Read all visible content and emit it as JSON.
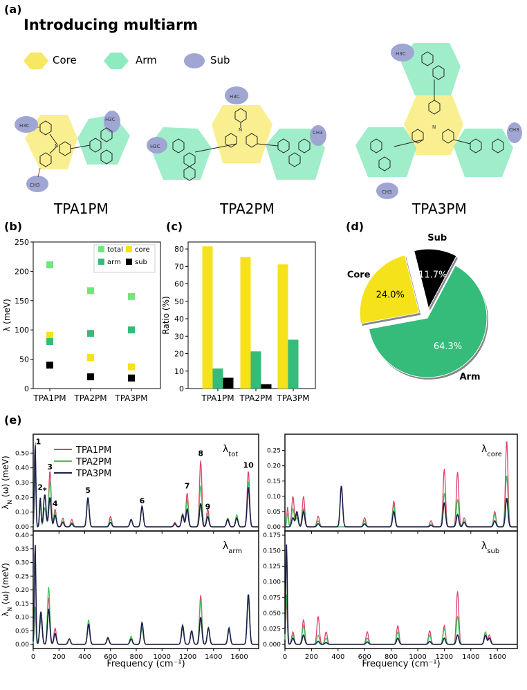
{
  "panel_labels": {
    "a": "(a)",
    "b": "(b)",
    "c": "(c)",
    "d": "(d)",
    "e": "(e)"
  },
  "section_a": {
    "title": "Introducing multiarm",
    "legend": [
      {
        "name": "Core",
        "color": "#f7e863"
      },
      {
        "name": "Arm",
        "color": "#8eeabf"
      },
      {
        "name": "Sub",
        "color": "#9fa6d3"
      }
    ],
    "molecules": [
      "TPA1PM",
      "TPA2PM",
      "TPA3PM"
    ],
    "chem_labels": {
      "h3c_o": "H3C",
      "o": "O",
      "n": "N",
      "ch3": "CH3"
    }
  },
  "chart_data": [
    {
      "id": "b",
      "type": "scatter",
      "xlabel": "",
      "ylabel": "λ (meV)",
      "categories": [
        "TPA1PM",
        "TPA2PM",
        "TPA3PM"
      ],
      "ylim": [
        0,
        250
      ],
      "yticks": [
        0,
        50,
        100,
        150,
        200,
        250
      ],
      "series": [
        {
          "name": "total",
          "color": "#6ee87b",
          "values": [
            211,
            167,
            157
          ]
        },
        {
          "name": "core",
          "color": "#f6e21a",
          "values": [
            91,
            53,
            37
          ]
        },
        {
          "name": "arm",
          "color": "#35bb7a",
          "values": [
            80,
            94,
            100
          ]
        },
        {
          "name": "sub",
          "color": "#000000",
          "values": [
            40,
            20,
            18
          ]
        }
      ]
    },
    {
      "id": "c",
      "type": "bar",
      "xlabel": "",
      "ylabel": "Ratio (%)",
      "categories": [
        "TPA1PM",
        "TPA2PM",
        "TPA3PM"
      ],
      "ylim": [
        0,
        84
      ],
      "yticks": [
        0,
        10,
        20,
        30,
        40,
        50,
        60,
        70,
        80
      ],
      "series": [
        {
          "name": "core",
          "color": "#f6e21a",
          "values": [
            81.5,
            75.3,
            71.2
          ]
        },
        {
          "name": "arm",
          "color": "#35bb7a",
          "values": [
            11.5,
            21.3,
            28.0
          ]
        },
        {
          "name": "sub",
          "color": "#000000",
          "values": [
            6.2,
            2.5,
            0.2
          ]
        }
      ]
    },
    {
      "id": "d",
      "type": "pie",
      "slices": [
        {
          "name": "Arm",
          "value": 64.3,
          "label": "64.3%",
          "color": "#35bb7a",
          "text_color": "#ffffff"
        },
        {
          "name": "Core",
          "value": 24.0,
          "label": "24.0%",
          "color": "#f6e21a",
          "text_color": "#000000"
        },
        {
          "name": "Sub",
          "value": 11.7,
          "label": "11.7%",
          "color": "#000000",
          "text_color": "#ffffff"
        }
      ]
    },
    {
      "id": "e",
      "type": "line",
      "xlabel": "Frequency (cm⁻¹)",
      "ylabel": "λN (ω) (meV)",
      "ylabel_parts": {
        "main": "λ",
        "sub": "N",
        "rest": " (ω) (meV)"
      },
      "xlim": [
        0,
        1750
      ],
      "xticks": [
        0,
        200,
        400,
        600,
        800,
        1000,
        1200,
        1400,
        1600
      ],
      "series_names": [
        "TPA1PM",
        "TPA2PM",
        "TPA3PM"
      ],
      "series_colors": [
        "#e0406a",
        "#3ec45b",
        "#1a1f4a"
      ],
      "peak_labels": [
        {
          "label": "1",
          "x": 40,
          "y": 0.56
        },
        {
          "label": "2",
          "x": 55,
          "y": 0.25
        },
        {
          "label": "*",
          "x": 90,
          "y": 0.23
        },
        {
          "label": "3",
          "x": 130,
          "y": 0.39
        },
        {
          "label": "4",
          "x": 170,
          "y": 0.14
        },
        {
          "label": "5",
          "x": 425,
          "y": 0.23
        },
        {
          "label": "6",
          "x": 845,
          "y": 0.16
        },
        {
          "label": "7",
          "x": 1195,
          "y": 0.26
        },
        {
          "label": "8",
          "x": 1300,
          "y": 0.48
        },
        {
          "label": "9",
          "x": 1355,
          "y": 0.12
        },
        {
          "label": "10",
          "x": 1670,
          "y": 0.4
        }
      ],
      "subplots": [
        {
          "name": "tot",
          "title_main": "λ",
          "title_sub": "tot",
          "ylim": [
            0,
            0.6
          ],
          "yticks": [
            0,
            0.1,
            0.2,
            0.3,
            0.4,
            0.5
          ],
          "peaks": [
            [
              15,
              0.58,
              0.37,
              0.56
            ],
            [
              55,
              0.19,
              0.15,
              0.2
            ],
            [
              90,
              0.13,
              0.13,
              0.22
            ],
            [
              130,
              0.38,
              0.31,
              0.2
            ],
            [
              170,
              0.12,
              0.1,
              0.08
            ],
            [
              230,
              0.06,
              0.04,
              0.03
            ],
            [
              300,
              0.05,
              0.03,
              0.02
            ],
            [
              425,
              0.19,
              0.2,
              0.2
            ],
            [
              600,
              0.07,
              0.05,
              0.03
            ],
            [
              760,
              0.05,
              0.05,
              0.05
            ],
            [
              845,
              0.14,
              0.14,
              0.14
            ],
            [
              1100,
              0.03,
              0.02,
              0.02
            ],
            [
              1160,
              0.09,
              0.09,
              0.08
            ],
            [
              1195,
              0.23,
              0.18,
              0.12
            ],
            [
              1300,
              0.45,
              0.28,
              0.16
            ],
            [
              1355,
              0.12,
              0.09,
              0.07
            ],
            [
              1510,
              0.06,
              0.06,
              0.05
            ],
            [
              1580,
              0.08,
              0.08,
              0.06
            ],
            [
              1670,
              0.38,
              0.31,
              0.27
            ]
          ]
        },
        {
          "name": "core",
          "title_main": "λ",
          "title_sub": "core",
          "ylim": [
            0,
            0.29
          ],
          "yticks": [
            0,
            0.05,
            0.1,
            0.15,
            0.2,
            0.25
          ],
          "peaks": [
            [
              20,
              0.065,
              0.045,
              0.0
            ],
            [
              60,
              0.1,
              0.06,
              0.03
            ],
            [
              90,
              0.04,
              0.03,
              0.05
            ],
            [
              140,
              0.1,
              0.06,
              0.05
            ],
            [
              250,
              0.035,
              0.02,
              0.01
            ],
            [
              425,
              0.0,
              0.0,
              0.135
            ],
            [
              600,
              0.03,
              0.02,
              0.01
            ],
            [
              820,
              0.085,
              0.07,
              0.05
            ],
            [
              1100,
              0.02,
              0.01,
              0.005
            ],
            [
              1200,
              0.19,
              0.11,
              0.08
            ],
            [
              1300,
              0.18,
              0.09,
              0.04
            ],
            [
              1350,
              0.03,
              0.02,
              0.015
            ],
            [
              1580,
              0.05,
              0.04,
              0.02
            ],
            [
              1670,
              0.285,
              0.17,
              0.095
            ]
          ]
        },
        {
          "name": "arm",
          "title_main": "λ",
          "title_sub": "arm",
          "ylim": [
            0,
            0.4
          ],
          "yticks": [
            0,
            0.05,
            0.1,
            0.15,
            0.2,
            0.25,
            0.3,
            0.35,
            0.4
          ],
          "peaks": [
            [
              15,
              0.12,
              0.14,
              0.37
            ],
            [
              60,
              0.09,
              0.1,
              0.12
            ],
            [
              120,
              0.17,
              0.21,
              0.13
            ],
            [
              170,
              0.06,
              0.04,
              0.04
            ],
            [
              280,
              0.02,
              0.02,
              0.02
            ],
            [
              430,
              0.07,
              0.09,
              0.075
            ],
            [
              580,
              0.02,
              0.025,
              0.025
            ],
            [
              760,
              0.02,
              0.03,
              0.02
            ],
            [
              845,
              0.06,
              0.06,
              0.08
            ],
            [
              1160,
              0.06,
              0.06,
              0.07
            ],
            [
              1230,
              0.05,
              0.05,
              0.05
            ],
            [
              1300,
              0.18,
              0.16,
              0.1
            ],
            [
              1360,
              0.06,
              0.06,
              0.06
            ],
            [
              1520,
              0.05,
              0.05,
              0.06
            ],
            [
              1670,
              0.18,
              0.17,
              0.185
            ]
          ]
        },
        {
          "name": "sub",
          "title_main": "λ",
          "title_sub": "sub",
          "ylim": [
            0,
            0.175
          ],
          "yticks": [
            0,
            0.025,
            0.05,
            0.075,
            0.1,
            0.125,
            0.15,
            0.175
          ],
          "peaks": [
            [
              12,
              0.07,
              0.08,
              0.16
            ],
            [
              60,
              0.02,
              0.015,
              0.01
            ],
            [
              140,
              0.04,
              0.03,
              0.015
            ],
            [
              250,
              0.045,
              0.015,
              0.005
            ],
            [
              310,
              0.02,
              0.01,
              0.003
            ],
            [
              620,
              0.02,
              0.01,
              0.004
            ],
            [
              850,
              0.03,
              0.02,
              0.01
            ],
            [
              1090,
              0.022,
              0.015,
              0.005
            ],
            [
              1200,
              0.03,
              0.025,
              0.01
            ],
            [
              1300,
              0.085,
              0.045,
              0.015
            ],
            [
              1510,
              0.02,
              0.02,
              0.015
            ],
            [
              1540,
              0.015,
              0.01,
              0.01
            ]
          ]
        }
      ]
    }
  ]
}
